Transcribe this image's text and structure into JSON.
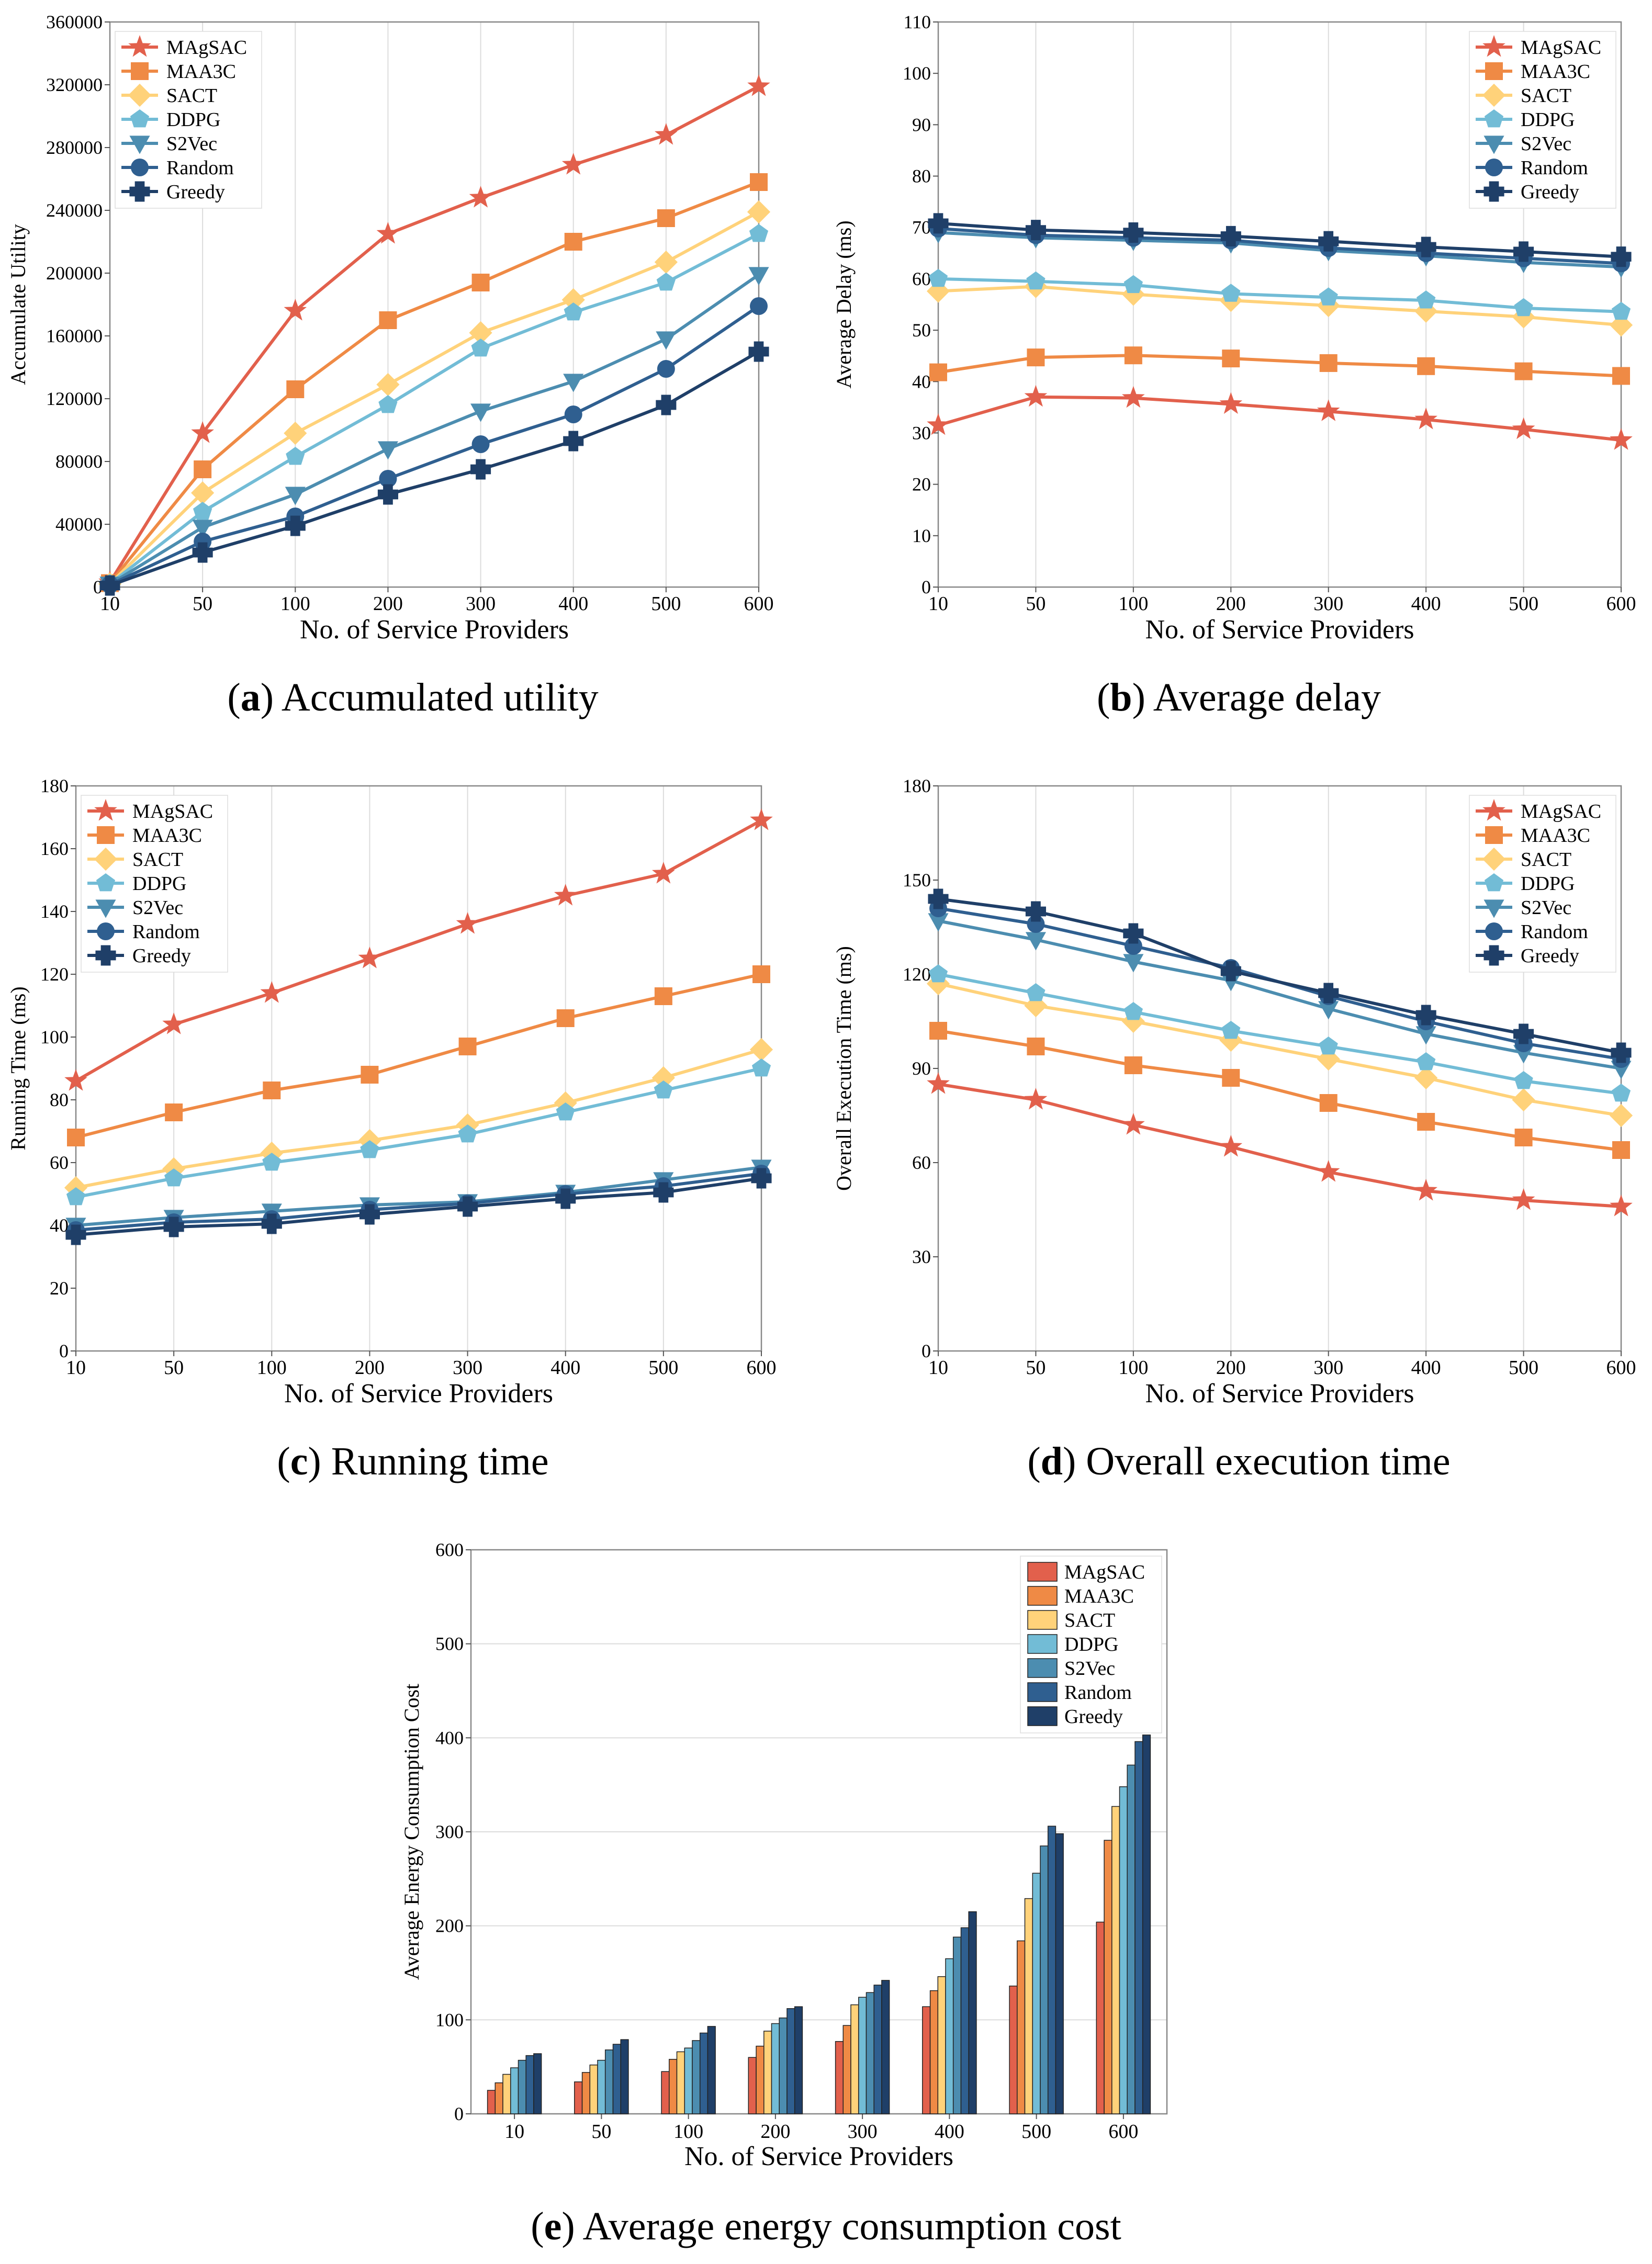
{
  "legend_names": [
    "MAgSAC",
    "MAA3C",
    "SACT",
    "DDPG",
    "S2Vec",
    "Random",
    "Greedy"
  ],
  "colors": {
    "MAgSAC": "#e2604c",
    "MAA3C": "#ef8a45",
    "SACT": "#ffd27a",
    "DDPG": "#72bcd6",
    "S2Vec": "#4c8db0",
    "Random": "#2f5f90",
    "Greedy": "#1f3f68"
  },
  "markers": {
    "MAgSAC": "star",
    "MAA3C": "square",
    "SACT": "diamond",
    "DDPG": "pentagon",
    "S2Vec": "triangle-down",
    "Random": "circle",
    "Greedy": "plus"
  },
  "chart_data": [
    {
      "id": "a",
      "type": "line",
      "caption_letter": "a",
      "caption_text": "Accumulated utility",
      "title": "",
      "xlabel": "No. of Service Providers",
      "ylabel": "Accumulate Utility",
      "categories": [
        "10",
        "50",
        "100",
        "200",
        "300",
        "400",
        "500",
        "600"
      ],
      "ylim": [
        0,
        360000
      ],
      "yticks": [
        0,
        40000,
        80000,
        120000,
        160000,
        200000,
        240000,
        280000,
        320000,
        360000
      ],
      "legend_position": "top-left",
      "series": [
        {
          "name": "MAgSAC",
          "values": [
            3000,
            98000,
            176000,
            225000,
            248000,
            269000,
            288000,
            319000
          ]
        },
        {
          "name": "MAA3C",
          "values": [
            2500,
            75000,
            126000,
            170000,
            194000,
            220000,
            235000,
            258000
          ]
        },
        {
          "name": "SACT",
          "values": [
            2000,
            60000,
            98000,
            129000,
            162000,
            183000,
            207000,
            239000
          ]
        },
        {
          "name": "DDPG",
          "values": [
            2000,
            48000,
            83000,
            116000,
            152000,
            175000,
            194000,
            225000
          ]
        },
        {
          "name": "S2Vec",
          "values": [
            1800,
            38000,
            59000,
            88000,
            112000,
            131000,
            158000,
            199000
          ]
        },
        {
          "name": "Random",
          "values": [
            1500,
            29000,
            45000,
            69000,
            91000,
            110000,
            139000,
            179000
          ]
        },
        {
          "name": "Greedy",
          "values": [
            1000,
            22000,
            39000,
            59000,
            75000,
            93000,
            116000,
            150000
          ]
        }
      ]
    },
    {
      "id": "b",
      "type": "line",
      "caption_letter": "b",
      "caption_text": "Average delay",
      "title": "",
      "xlabel": "No. of Service Providers",
      "ylabel": "Average Delay (ms)",
      "categories": [
        "10",
        "50",
        "100",
        "200",
        "300",
        "400",
        "500",
        "600"
      ],
      "ylim": [
        0,
        110
      ],
      "yticks": [
        0,
        10,
        20,
        30,
        40,
        50,
        60,
        70,
        80,
        90,
        100,
        110
      ],
      "legend_position": "top-right",
      "series": [
        {
          "name": "MAgSAC",
          "values": [
            31.5,
            37,
            36.8,
            35.6,
            34.2,
            32.6,
            30.7,
            28.6
          ]
        },
        {
          "name": "MAA3C",
          "values": [
            41.8,
            44.7,
            45.1,
            44.5,
            43.6,
            43,
            42,
            41.1
          ]
        },
        {
          "name": "SACT",
          "values": [
            57.6,
            58.5,
            57,
            55.8,
            54.8,
            53.7,
            52.6,
            51
          ]
        },
        {
          "name": "DDPG",
          "values": [
            60,
            59.5,
            58.8,
            57.1,
            56.4,
            55.8,
            54.3,
            53.6
          ]
        },
        {
          "name": "S2Vec",
          "values": [
            69,
            68,
            67.5,
            67,
            65.5,
            64.5,
            63.2,
            62.3
          ]
        },
        {
          "name": "Random",
          "values": [
            69.8,
            68.5,
            68,
            67.5,
            66,
            65,
            64,
            63
          ]
        },
        {
          "name": "Greedy",
          "values": [
            70.8,
            69.5,
            69,
            68.3,
            67.3,
            66.2,
            65.3,
            64.3
          ]
        }
      ]
    },
    {
      "id": "c",
      "type": "line",
      "caption_letter": "c",
      "caption_text": "Running time",
      "title": "",
      "xlabel": "No. of Service Providers",
      "ylabel": "Running Time (ms)",
      "categories": [
        "10",
        "50",
        "100",
        "200",
        "300",
        "400",
        "500",
        "600"
      ],
      "ylim": [
        0,
        180
      ],
      "yticks": [
        0,
        20,
        40,
        60,
        80,
        100,
        120,
        140,
        160,
        180
      ],
      "legend_position": "top-left",
      "series": [
        {
          "name": "MAgSAC",
          "values": [
            86,
            104,
            114,
            125,
            136,
            145,
            152,
            169
          ]
        },
        {
          "name": "MAA3C",
          "values": [
            68,
            76,
            83,
            88,
            97,
            106,
            113,
            120
          ]
        },
        {
          "name": "SACT",
          "values": [
            52,
            58,
            63,
            67,
            72,
            79,
            87,
            96
          ]
        },
        {
          "name": "DDPG",
          "values": [
            49,
            55,
            60,
            64,
            69,
            76,
            83,
            90
          ]
        },
        {
          "name": "S2Vec",
          "values": [
            40,
            42.5,
            44.5,
            46.5,
            47.5,
            50.5,
            54.5,
            58.5
          ]
        },
        {
          "name": "Random",
          "values": [
            38.5,
            41,
            42,
            45,
            47,
            50,
            52.5,
            56.5
          ]
        },
        {
          "name": "Greedy",
          "values": [
            37,
            39.5,
            40.5,
            43.5,
            46,
            48.5,
            50.5,
            55
          ]
        }
      ]
    },
    {
      "id": "d",
      "type": "line",
      "caption_letter": "d",
      "caption_text": "Overall execution time",
      "title": "",
      "xlabel": "No. of Service Providers",
      "ylabel": "Overall Execution Time (ms)",
      "categories": [
        "10",
        "50",
        "100",
        "200",
        "300",
        "400",
        "500",
        "600"
      ],
      "ylim": [
        0,
        180
      ],
      "yticks": [
        0,
        30,
        60,
        90,
        120,
        150,
        180
      ],
      "legend_position": "top-right",
      "series": [
        {
          "name": "MAgSAC",
          "values": [
            85,
            80,
            72,
            65,
            57,
            51,
            48,
            46
          ]
        },
        {
          "name": "MAA3C",
          "values": [
            102,
            97,
            91,
            87,
            79,
            73,
            68,
            64
          ]
        },
        {
          "name": "SACT",
          "values": [
            117,
            110,
            105,
            99,
            93,
            87,
            80,
            75
          ]
        },
        {
          "name": "DDPG",
          "values": [
            120,
            114,
            108,
            102,
            97,
            92,
            86,
            82
          ]
        },
        {
          "name": "S2Vec",
          "values": [
            137,
            131,
            124,
            118,
            109,
            101,
            95,
            90
          ]
        },
        {
          "name": "Random",
          "values": [
            141,
            136,
            129,
            122,
            113,
            105,
            98,
            93
          ]
        },
        {
          "name": "Greedy",
          "values": [
            144,
            140,
            133,
            121,
            114,
            107,
            101,
            95
          ]
        }
      ]
    },
    {
      "id": "e",
      "type": "bar",
      "caption_letter": "e",
      "caption_text": "Average energy consumption cost",
      "title": "",
      "xlabel": "No. of Service Providers",
      "ylabel": "Average Energy Consumption Cost",
      "categories": [
        "10",
        "50",
        "100",
        "200",
        "300",
        "400",
        "500",
        "600"
      ],
      "ylim": [
        0,
        600
      ],
      "yticks": [
        0,
        100,
        200,
        300,
        400,
        500,
        600
      ],
      "legend_position": "top-right",
      "series": [
        {
          "name": "MAgSAC",
          "values": [
            25,
            34,
            45,
            60,
            77,
            114,
            136,
            204
          ]
        },
        {
          "name": "MAA3C",
          "values": [
            33,
            44,
            58,
            72,
            94,
            131,
            184,
            291
          ]
        },
        {
          "name": "SACT",
          "values": [
            42,
            52,
            66,
            88,
            116,
            146,
            229,
            327
          ]
        },
        {
          "name": "DDPG",
          "values": [
            49,
            57,
            70,
            96,
            124,
            165,
            256,
            348
          ]
        },
        {
          "name": "S2Vec",
          "values": [
            57,
            68,
            78,
            102,
            129,
            188,
            285,
            371
          ]
        },
        {
          "name": "Random",
          "values": [
            62,
            74,
            86,
            112,
            137,
            198,
            306,
            396
          ]
        },
        {
          "name": "Greedy",
          "values": [
            64,
            79,
            93,
            114,
            142,
            215,
            298,
            403
          ]
        }
      ]
    }
  ]
}
